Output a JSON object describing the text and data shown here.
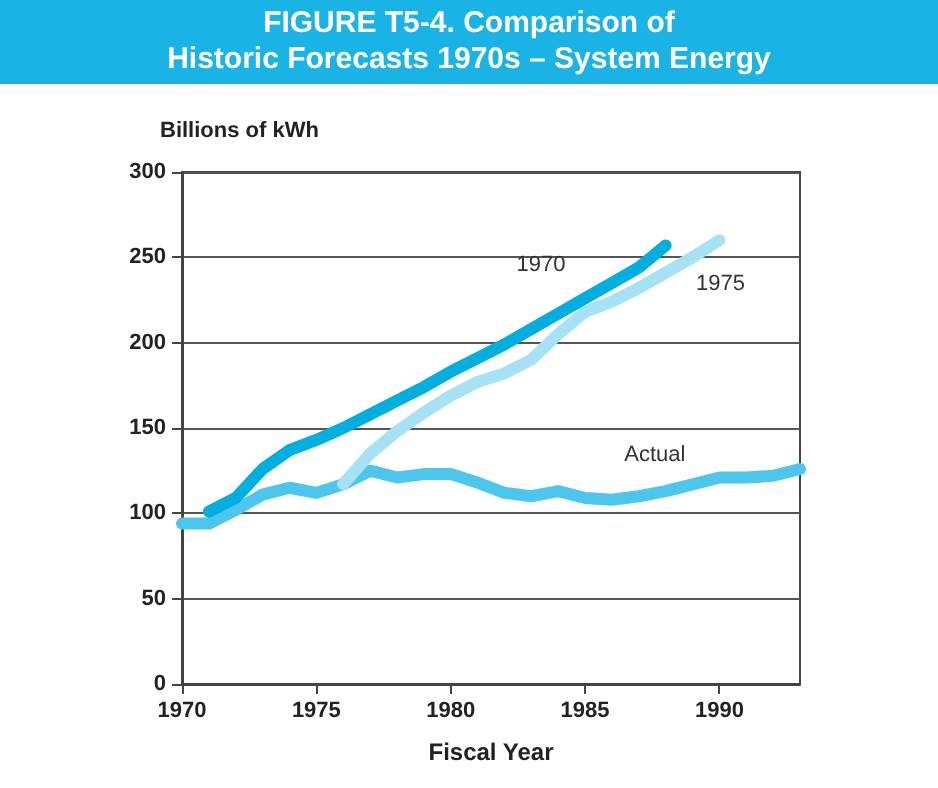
{
  "chart_data": {
    "type": "line",
    "title": "FIGURE T5-4. Comparison of\nHistoric Forecasts 1970s – System Energy",
    "xlabel": "Fiscal Year",
    "ylabel": "Billions of kWh",
    "xlim": [
      1970,
      1993
    ],
    "xticks": [
      1970,
      1975,
      1980,
      1985,
      1990
    ],
    "ylim": [
      0,
      300
    ],
    "yticks": [
      0,
      50,
      100,
      150,
      200,
      250,
      300
    ],
    "grid": "y",
    "legend": false,
    "marker": "none",
    "line_style": "solid",
    "series": [
      {
        "name": "1970",
        "color": "#00aee0",
        "x": [
          1971,
          1972,
          1973,
          1974,
          1975,
          1976,
          1977,
          1978,
          1979,
          1980,
          1981,
          1982,
          1983,
          1984,
          1985,
          1986,
          1987,
          1988
        ],
        "values": [
          101,
          109,
          126,
          137,
          143,
          150,
          158,
          166,
          174,
          183,
          191,
          199,
          208,
          217,
          226,
          235,
          244,
          257
        ]
      },
      {
        "name": "1975",
        "color": "#a6e1f5",
        "x": [
          1976,
          1977,
          1978,
          1979,
          1980,
          1981,
          1982,
          1983,
          1984,
          1985,
          1986,
          1987,
          1988,
          1989,
          1990
        ],
        "values": [
          117,
          135,
          148,
          159,
          169,
          177,
          182,
          190,
          205,
          218,
          224,
          232,
          241,
          250,
          260
        ]
      },
      {
        "name": "Actual",
        "color": "#4cc6ec",
        "x": [
          1970,
          1971,
          1972,
          1973,
          1974,
          1975,
          1976,
          1977,
          1978,
          1979,
          1980,
          1981,
          1982,
          1983,
          1984,
          1985,
          1986,
          1987,
          1988,
          1989,
          1990,
          1991,
          1992,
          1993
        ],
        "values": [
          94,
          94,
          102,
          111,
          115,
          112,
          117,
          125,
          121,
          123,
          123,
          118,
          112,
          110,
          113,
          109,
          108,
          110,
          113,
          117,
          121,
          121,
          122,
          126
        ]
      }
    ]
  }
}
